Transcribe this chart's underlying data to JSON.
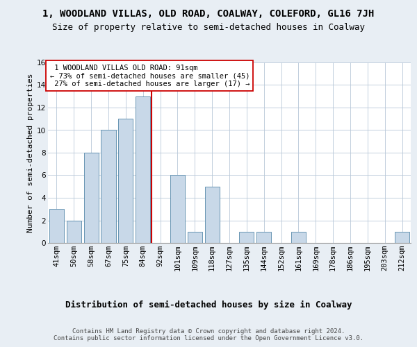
{
  "title1": "1, WOODLAND VILLAS, OLD ROAD, COALWAY, COLEFORD, GL16 7JH",
  "title2": "Size of property relative to semi-detached houses in Coalway",
  "xlabel": "Distribution of semi-detached houses by size in Coalway",
  "ylabel": "Number of semi-detached properties",
  "footer": "Contains HM Land Registry data © Crown copyright and database right 2024.\nContains public sector information licensed under the Open Government Licence v3.0.",
  "categories": [
    "41sqm",
    "50sqm",
    "58sqm",
    "67sqm",
    "75sqm",
    "84sqm",
    "92sqm",
    "101sqm",
    "109sqm",
    "118sqm",
    "127sqm",
    "135sqm",
    "144sqm",
    "152sqm",
    "161sqm",
    "169sqm",
    "178sqm",
    "186sqm",
    "195sqm",
    "203sqm",
    "212sqm"
  ],
  "values": [
    3,
    2,
    8,
    10,
    11,
    13,
    0,
    6,
    1,
    5,
    0,
    1,
    1,
    0,
    1,
    0,
    0,
    0,
    0,
    0,
    1
  ],
  "property_label": "1 WOODLAND VILLAS OLD ROAD: 91sqm",
  "pct_smaller": 73,
  "pct_smaller_n": 45,
  "pct_larger": 27,
  "pct_larger_n": 17,
  "bar_color": "#c8d8e8",
  "bar_edge_color": "#5588aa",
  "vline_color": "#cc0000",
  "annotation_box_color": "#ffffff",
  "annotation_box_edge": "#cc0000",
  "bg_color": "#e8eef4",
  "plot_bg_color": "#ffffff",
  "grid_color": "#b8c8d8",
  "ylim": [
    0,
    16
  ],
  "yticks": [
    0,
    2,
    4,
    6,
    8,
    10,
    12,
    14,
    16
  ],
  "title1_fontsize": 10,
  "title2_fontsize": 9,
  "xlabel_fontsize": 9,
  "ylabel_fontsize": 8,
  "tick_fontsize": 7.5,
  "annotation_fontsize": 7.5,
  "footer_fontsize": 6.5
}
